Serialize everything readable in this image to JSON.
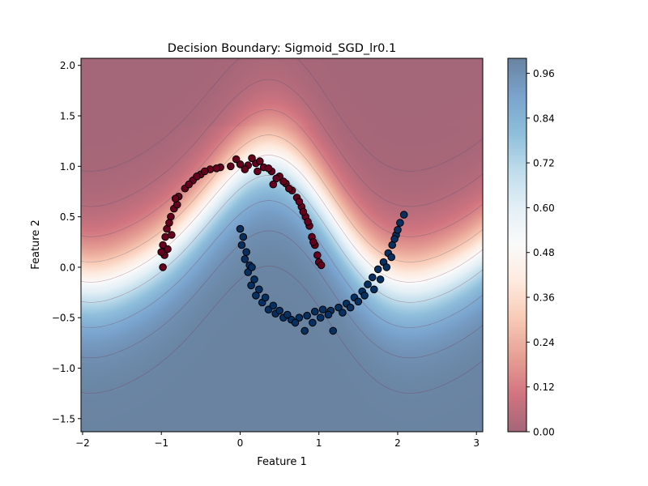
{
  "chart_data": {
    "type": "scatter",
    "title": "Decision Boundary: Sigmoid_SGD_lr0.1",
    "xlabel": "Feature 1",
    "ylabel": "Feature 2",
    "xlim": [
      -2.02,
      3.08
    ],
    "ylim": [
      -1.63,
      2.07
    ],
    "xticks": [
      -2,
      -1,
      0,
      1,
      2,
      3
    ],
    "xtick_labels": [
      "−2",
      "−1",
      "0",
      "1",
      "2",
      "3"
    ],
    "yticks": [
      -1.5,
      -1.0,
      -0.5,
      0.0,
      0.5,
      1.0,
      1.5,
      2.0
    ],
    "ytick_labels": [
      "−1.5",
      "−1.0",
      "−0.5",
      "0.0",
      "0.5",
      "1.0",
      "1.5",
      "2.0"
    ],
    "background": "filled contour of predicted probability of class 1 (RdBu colormap, alpha 0.6)",
    "colorbar": {
      "range": [
        0.0,
        1.0
      ],
      "ticks": [
        0.0,
        0.12,
        0.24,
        0.36,
        0.48,
        0.6,
        0.72,
        0.84,
        0.96
      ],
      "tick_labels": [
        "0.00",
        "0.12",
        "0.24",
        "0.36",
        "0.48",
        "0.60",
        "0.72",
        "0.84",
        "0.96"
      ]
    },
    "colors": {
      "class0": "#67001f",
      "class1": "#053061",
      "marker_edge": "#000000"
    },
    "series": [
      {
        "class": 0,
        "points": [
          [
            -0.98,
            0.0
          ],
          [
            -0.96,
            0.12
          ],
          [
            -0.98,
            0.22
          ],
          [
            -0.93,
            0.38
          ],
          [
            -0.88,
            0.5
          ],
          [
            -0.84,
            0.58
          ],
          [
            -0.78,
            0.7
          ],
          [
            -0.7,
            0.78
          ],
          [
            -0.6,
            0.86
          ],
          [
            -0.5,
            0.92
          ],
          [
            -0.38,
            0.97
          ],
          [
            -0.25,
            0.99
          ],
          [
            -0.12,
            1.0
          ],
          [
            0.0,
            1.02
          ],
          [
            0.1,
            1.01
          ],
          [
            0.2,
            1.03
          ],
          [
            0.3,
            0.99
          ],
          [
            0.4,
            0.95
          ],
          [
            0.5,
            0.9
          ],
          [
            0.58,
            0.83
          ],
          [
            0.66,
            0.76
          ],
          [
            0.72,
            0.69
          ],
          [
            0.78,
            0.6
          ],
          [
            0.83,
            0.5
          ],
          [
            0.88,
            0.41
          ],
          [
            0.91,
            0.3
          ],
          [
            0.95,
            0.22
          ],
          [
            0.98,
            0.12
          ],
          [
            1.0,
            0.05
          ],
          [
            1.03,
            0.02
          ],
          [
            -1.0,
            0.15
          ],
          [
            -0.95,
            0.3
          ],
          [
            -0.9,
            0.44
          ],
          [
            -0.8,
            0.62
          ],
          [
            -0.65,
            0.82
          ],
          [
            -0.45,
            0.95
          ],
          [
            -0.3,
            0.98
          ],
          [
            -0.05,
            1.07
          ],
          [
            0.06,
            0.97
          ],
          [
            0.15,
            1.08
          ],
          [
            0.25,
            1.05
          ],
          [
            0.36,
            0.98
          ],
          [
            0.46,
            0.88
          ],
          [
            0.55,
            0.85
          ],
          [
            0.62,
            0.78
          ],
          [
            0.75,
            0.65
          ],
          [
            0.8,
            0.55
          ],
          [
            0.86,
            0.45
          ],
          [
            0.93,
            0.25
          ],
          [
            -0.92,
            0.18
          ],
          [
            -0.87,
            0.32
          ],
          [
            -0.82,
            0.68
          ],
          [
            -0.55,
            0.9
          ],
          [
            0.22,
            0.95
          ],
          [
            0.42,
            0.82
          ]
        ]
      },
      {
        "class": 1,
        "points": [
          [
            0.0,
            0.38
          ],
          [
            0.02,
            0.22
          ],
          [
            0.06,
            0.08
          ],
          [
            0.1,
            -0.05
          ],
          [
            0.14,
            -0.18
          ],
          [
            0.2,
            -0.28
          ],
          [
            0.28,
            -0.35
          ],
          [
            0.36,
            -0.42
          ],
          [
            0.45,
            -0.46
          ],
          [
            0.55,
            -0.5
          ],
          [
            0.65,
            -0.52
          ],
          [
            0.75,
            -0.5
          ],
          [
            0.85,
            -0.48
          ],
          [
            0.95,
            -0.44
          ],
          [
            1.05,
            -0.42
          ],
          [
            1.15,
            -0.43
          ],
          [
            1.25,
            -0.4
          ],
          [
            1.35,
            -0.36
          ],
          [
            1.45,
            -0.3
          ],
          [
            1.55,
            -0.24
          ],
          [
            1.62,
            -0.17
          ],
          [
            1.68,
            -0.1
          ],
          [
            1.75,
            -0.02
          ],
          [
            1.82,
            0.05
          ],
          [
            1.88,
            0.14
          ],
          [
            1.93,
            0.22
          ],
          [
            1.98,
            0.32
          ],
          [
            2.03,
            0.44
          ],
          [
            2.08,
            0.52
          ],
          [
            0.04,
            0.3
          ],
          [
            0.08,
            0.15
          ],
          [
            0.12,
            0.02
          ],
          [
            0.18,
            -0.12
          ],
          [
            0.24,
            -0.22
          ],
          [
            0.32,
            -0.3
          ],
          [
            0.42,
            -0.38
          ],
          [
            0.5,
            -0.43
          ],
          [
            0.6,
            -0.47
          ],
          [
            0.7,
            -0.55
          ],
          [
            0.82,
            -0.63
          ],
          [
            0.92,
            -0.55
          ],
          [
            1.02,
            -0.5
          ],
          [
            1.12,
            -0.47
          ],
          [
            1.18,
            -0.63
          ],
          [
            1.3,
            -0.45
          ],
          [
            1.4,
            -0.4
          ],
          [
            1.5,
            -0.34
          ],
          [
            1.58,
            -0.28
          ],
          [
            1.7,
            -0.22
          ],
          [
            1.78,
            -0.12
          ],
          [
            1.86,
            0.0
          ],
          [
            1.92,
            0.1
          ],
          [
            2.0,
            0.37
          ],
          [
            1.96,
            0.28
          ],
          [
            0.15,
            0.0
          ]
        ]
      }
    ]
  }
}
